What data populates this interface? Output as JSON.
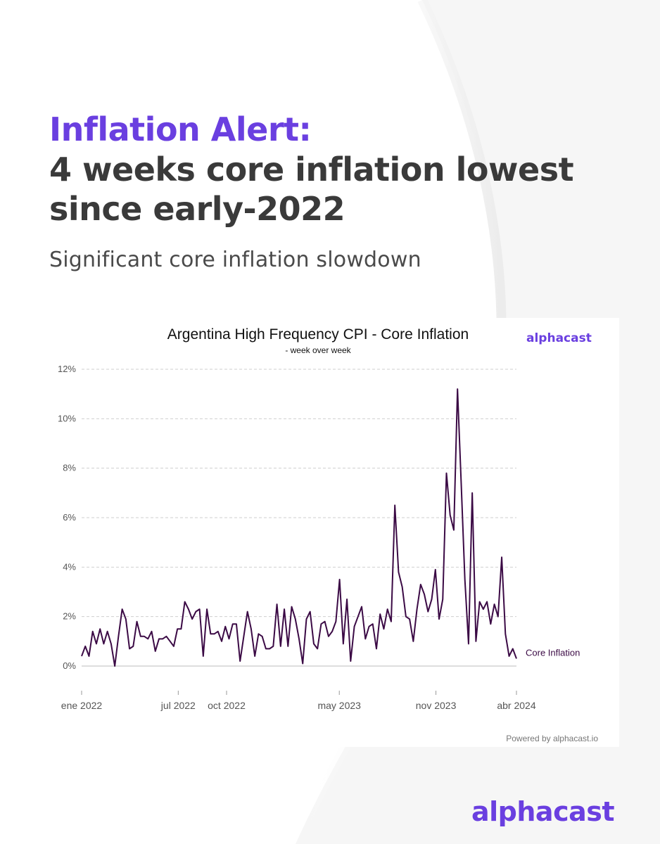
{
  "colors": {
    "accent": "#6a3fe0",
    "headline": "#3a3a3a",
    "line": "#3b0a45",
    "grid": "#cfcfcf"
  },
  "header": {
    "alert_label": "Inflation Alert:",
    "headline_line1": "4 weeks core inflation lowest",
    "headline_line2": "since early-2022",
    "subtitle": "Significant core inflation slowdown"
  },
  "brand": {
    "chart_logo": "alphacast",
    "footer_logo": "alphacast",
    "powered_by": "Powered by alphacast.io"
  },
  "chart_data": {
    "type": "line",
    "title": "Argentina High Frequency CPI - Core Inflation",
    "subtitle": "- week over week",
    "xlabel": "",
    "ylabel": "",
    "ylim": [
      0,
      12
    ],
    "y_ticks": [
      0,
      2,
      4,
      6,
      8,
      10,
      12
    ],
    "y_tick_labels": [
      "0%",
      "2%",
      "4%",
      "6%",
      "8%",
      "10%",
      "12%"
    ],
    "x_ticks": [
      "ene 2022",
      "jul 2022",
      "oct 2022",
      "may 2023",
      "nov 2023",
      "abr 2024"
    ],
    "grid": true,
    "series": [
      {
        "name": "Core Inflation",
        "values": [
          0.4,
          0.8,
          0.4,
          1.4,
          0.9,
          1.5,
          0.9,
          1.4,
          0.9,
          0.0,
          1.2,
          2.3,
          1.9,
          0.7,
          0.8,
          1.8,
          1.2,
          1.2,
          1.1,
          1.4,
          0.6,
          1.1,
          1.1,
          1.2,
          1.0,
          0.8,
          1.5,
          1.5,
          2.6,
          2.3,
          1.9,
          2.2,
          2.3,
          0.4,
          2.3,
          1.3,
          1.3,
          1.4,
          1.0,
          1.6,
          1.1,
          1.7,
          1.7,
          0.2,
          1.2,
          2.2,
          1.5,
          0.4,
          1.3,
          1.2,
          0.7,
          0.7,
          0.8,
          2.5,
          0.8,
          2.3,
          0.8,
          2.4,
          1.9,
          1.1,
          0.1,
          1.9,
          2.2,
          0.9,
          0.7,
          1.7,
          1.8,
          1.2,
          1.4,
          1.8,
          3.5,
          0.9,
          2.7,
          0.2,
          1.6,
          2.0,
          2.4,
          1.1,
          1.6,
          1.7,
          0.7,
          2.1,
          1.5,
          2.3,
          1.8,
          6.5,
          3.8,
          3.2,
          2.0,
          1.9,
          1.0,
          2.3,
          3.3,
          2.9,
          2.2,
          2.7,
          3.9,
          1.9,
          2.7,
          7.8,
          6.1,
          5.5,
          11.2,
          7.4,
          3.5,
          0.9,
          7.0,
          1.0,
          2.6,
          2.3,
          2.6,
          1.7,
          2.5,
          2.0,
          4.4,
          1.3,
          0.4,
          0.7,
          0.3
        ]
      }
    ]
  }
}
